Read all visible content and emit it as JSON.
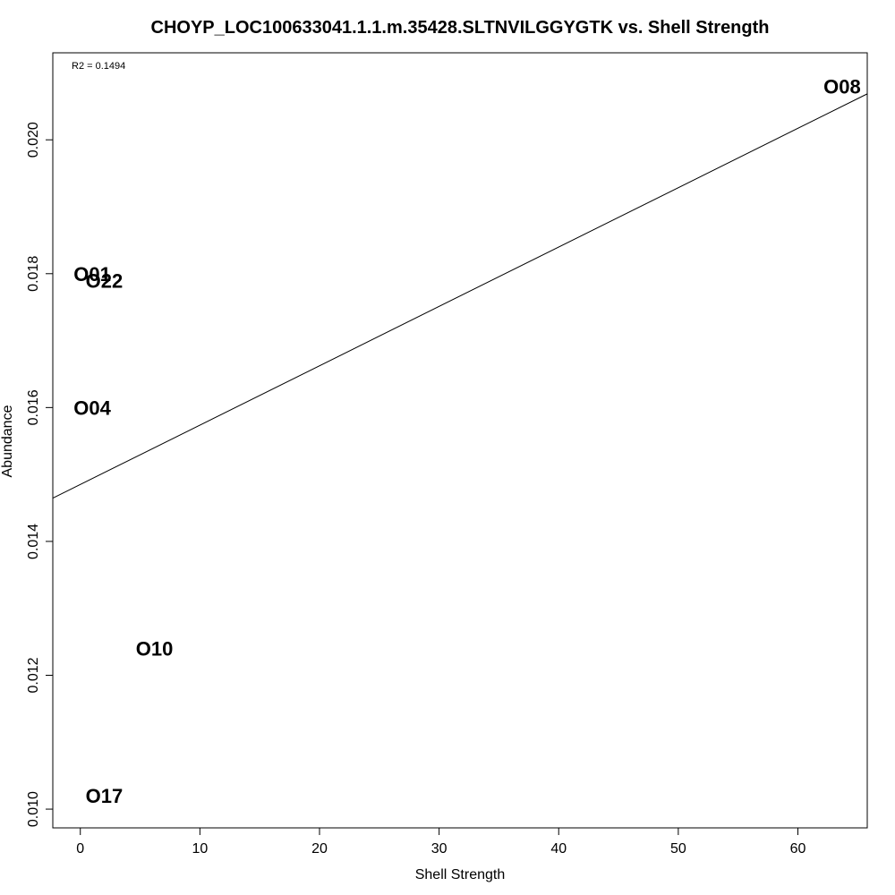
{
  "chart_data": {
    "type": "scatter",
    "title": "CHOYP_LOC100633041.1.1.m.35428.SLTNVILGGYGTK vs. Shell Strength",
    "xlabel": "Shell Strength",
    "ylabel": "Abundance",
    "xlim": [
      -2.3,
      65.8
    ],
    "ylim": [
      0.00972,
      0.0213
    ],
    "xticks": [
      0,
      10,
      20,
      30,
      40,
      50,
      60
    ],
    "yticks": [
      0.01,
      0.012,
      0.014,
      0.016,
      0.018,
      0.02
    ],
    "xtick_labels": [
      "0",
      "10",
      "20",
      "30",
      "40",
      "50",
      "60"
    ],
    "ytick_labels": [
      "0.010",
      "0.012",
      "0.014",
      "0.016",
      "0.018",
      "0.020"
    ],
    "points": [
      {
        "label": "O01",
        "x": 1.0,
        "y": 0.018
      },
      {
        "label": "O22",
        "x": 2.0,
        "y": 0.0179
      },
      {
        "label": "O04",
        "x": 1.0,
        "y": 0.016
      },
      {
        "label": "O10",
        "x": 6.2,
        "y": 0.0124
      },
      {
        "label": "O17",
        "x": 2.0,
        "y": 0.0102
      },
      {
        "label": "O08",
        "x": 63.7,
        "y": 0.0208
      }
    ],
    "regression": {
      "intercept": 0.01485,
      "slope": 8.87e-05
    },
    "annotation": "R2 = 0.1494",
    "grid": false,
    "legend": "none"
  }
}
